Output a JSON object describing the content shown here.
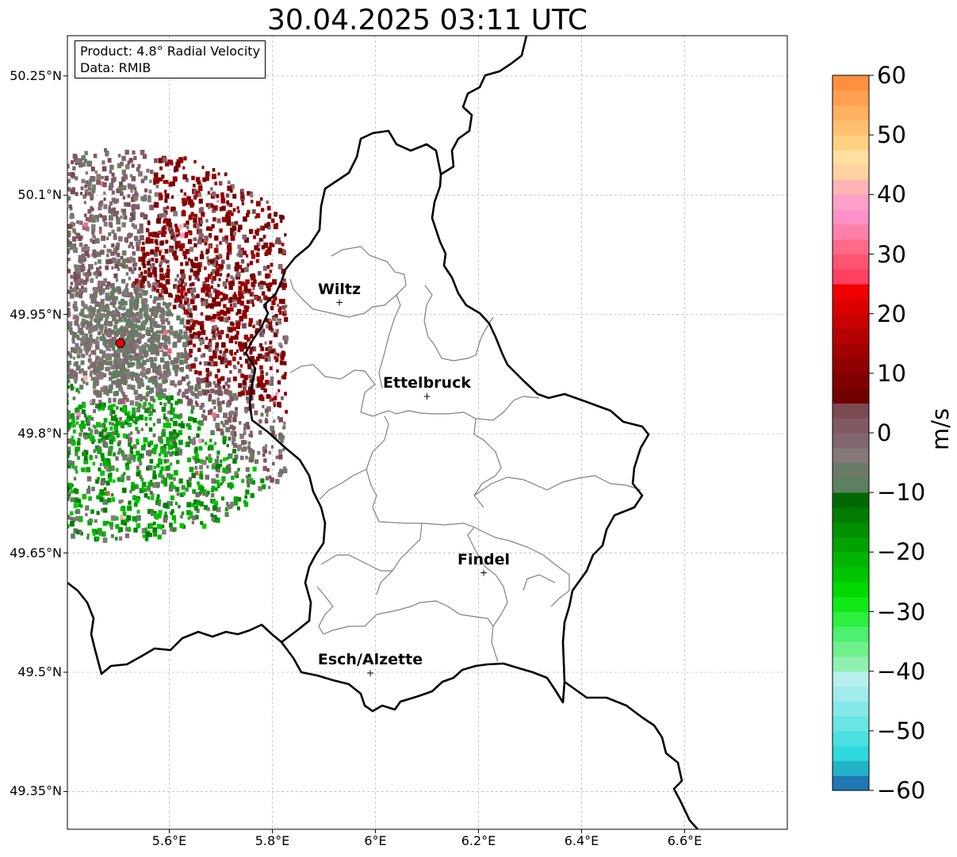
{
  "title": "30.04.2025 03:11 UTC",
  "info": {
    "product": "Product: 4.8° Radial Velocity",
    "data": "Data: RMIB"
  },
  "lat_ticks": [
    "50.25°N",
    "50.1°N",
    "49.95°N",
    "49.8°N",
    "49.65°N",
    "49.5°N",
    "49.35°N"
  ],
  "lon_ticks": [
    "5.6°E",
    "5.8°E",
    "6°E",
    "6.2°E",
    "6.4°E",
    "6.6°E"
  ],
  "cities": [
    {
      "name": "Wiltz",
      "lon": 5.93,
      "lat": 49.966
    },
    {
      "name": "Ettelbruck",
      "lon": 6.1,
      "lat": 49.848
    },
    {
      "name": "Findel",
      "lon": 6.21,
      "lat": 49.626
    },
    {
      "name": "Esch/Alzette",
      "lon": 5.99,
      "lat": 49.5
    }
  ],
  "radar_site": {
    "lon": 5.505,
    "lat": 49.914
  },
  "colorbar": {
    "unit": "m/s",
    "ticks": [
      "60",
      "50",
      "40",
      "30",
      "20",
      "10",
      "0",
      "−10",
      "−20",
      "−30",
      "−40",
      "−50",
      "−60"
    ],
    "range": [
      -60,
      60
    ],
    "colors": [
      "#1f78b4",
      "#23b3c9",
      "#2dd9de",
      "#4de0e0",
      "#6ae4e4",
      "#86e8e8",
      "#a0ecec",
      "#b8f0f0",
      "#90f0b0",
      "#6ef08a",
      "#4df070",
      "#2df040",
      "#10e818",
      "#00d800",
      "#00c400",
      "#00b400",
      "#00a200",
      "#009000",
      "#007d00",
      "#006800",
      "#5d8060",
      "#6a7a66",
      "#857878",
      "#826670",
      "#805a62",
      "#7a4a52",
      "#720000",
      "#800000",
      "#900000",
      "#a00000",
      "#b40000",
      "#c80000",
      "#dc0000",
      "#f00000",
      "#ff4060",
      "#ff5570",
      "#ff6a88",
      "#ff80a8",
      "#ff90c8",
      "#ffa0c8",
      "#ffb4b4",
      "#ffd0a0",
      "#ffe0a0",
      "#ffd080",
      "#ffc070",
      "#ffb060",
      "#ffa050",
      "#ff9040"
    ]
  }
}
